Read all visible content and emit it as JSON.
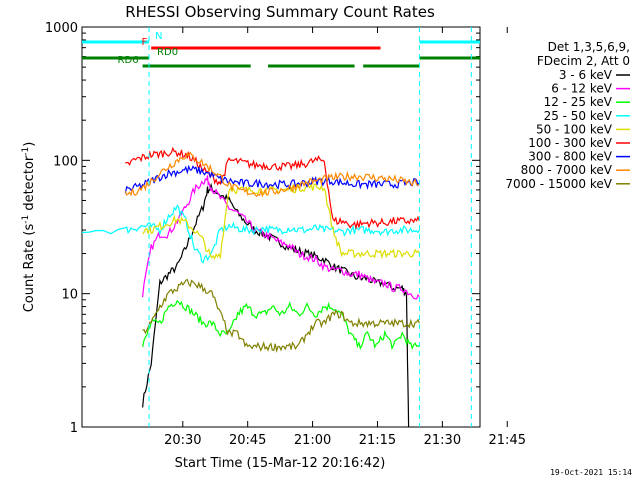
{
  "chart_data": {
    "type": "line",
    "title": "RHESSI Observing Summary Count Rates",
    "xlabel": "Start Time (15-Mar-12 20:16:42)",
    "ylabel_main": "Count Rate (s",
    "ylabel_sup1": "-1",
    "ylabel_mid": " detector",
    "ylabel_sup2": "-1",
    "ylabel_end": ")",
    "y_scale": "log",
    "ylim": [
      1,
      1000
    ],
    "xlim_minutes": [
      -10,
      82
    ],
    "x_tick_labels": [
      "20:30",
      "20:45",
      "21:00",
      "21:15",
      "21:30",
      "21:45"
    ],
    "x_tick_values": [
      13.3,
      28.3,
      43.3,
      58.3,
      73.3,
      88.3
    ],
    "y_tick_labels": [
      "1",
      "10",
      "100",
      "1000"
    ],
    "y_tick_values": [
      1,
      10,
      100,
      1000
    ],
    "legend": {
      "header1": "Det 1,3,5,6,9,",
      "header2": "FDecim 2, Att 0",
      "position": "right"
    },
    "series": [
      {
        "name": "3 - 6 keV",
        "color": "#000000",
        "values": [
          [
            4,
            1.5
          ],
          [
            6,
            3
          ],
          [
            8,
            12
          ],
          [
            10,
            14
          ],
          [
            12,
            16
          ],
          [
            14,
            22
          ],
          [
            16,
            32
          ],
          [
            18,
            45
          ],
          [
            19,
            60
          ],
          [
            20,
            62
          ],
          [
            22,
            55
          ],
          [
            24,
            50
          ],
          [
            26,
            40
          ],
          [
            28,
            34
          ],
          [
            30,
            30
          ],
          [
            32,
            28
          ],
          [
            34,
            26
          ],
          [
            36,
            24
          ],
          [
            38,
            22
          ],
          [
            40,
            21
          ],
          [
            42,
            20
          ],
          [
            44,
            19
          ],
          [
            46,
            18
          ],
          [
            48,
            16
          ],
          [
            50,
            15
          ],
          [
            52,
            14
          ],
          [
            54,
            13
          ],
          [
            56,
            13
          ],
          [
            58,
            12
          ],
          [
            60,
            12
          ],
          [
            62,
            11
          ],
          [
            64,
            11
          ],
          [
            65,
            10
          ],
          [
            65.5,
            1
          ]
        ]
      },
      {
        "name": "6 - 12 keV",
        "color": "#ff00ff",
        "values": [
          [
            4,
            10
          ],
          [
            6,
            22
          ],
          [
            8,
            28
          ],
          [
            10,
            28
          ],
          [
            12,
            35
          ],
          [
            14,
            45
          ],
          [
            16,
            60
          ],
          [
            18,
            70
          ],
          [
            19,
            72
          ],
          [
            20,
            62
          ],
          [
            22,
            52
          ],
          [
            24,
            44
          ],
          [
            26,
            40
          ],
          [
            28,
            35
          ],
          [
            30,
            30
          ],
          [
            32,
            28
          ],
          [
            34,
            26
          ],
          [
            36,
            24
          ],
          [
            38,
            23
          ],
          [
            40,
            20
          ],
          [
            42,
            19
          ],
          [
            44,
            18
          ],
          [
            46,
            16
          ],
          [
            48,
            15
          ],
          [
            50,
            15
          ],
          [
            52,
            14
          ],
          [
            54,
            14
          ],
          [
            56,
            13
          ],
          [
            58,
            12
          ],
          [
            60,
            12
          ],
          [
            62,
            11
          ],
          [
            64,
            11
          ],
          [
            66,
            10
          ],
          [
            68,
            9.5
          ]
        ]
      },
      {
        "name": "12 - 25 keV",
        "color": "#00ff00",
        "values": [
          [
            4,
            4
          ],
          [
            6,
            6
          ],
          [
            8,
            6
          ],
          [
            10,
            8
          ],
          [
            12,
            9
          ],
          [
            14,
            8
          ],
          [
            16,
            7
          ],
          [
            18,
            6
          ],
          [
            20,
            6
          ],
          [
            22,
            5
          ],
          [
            24,
            5
          ],
          [
            26,
            7
          ],
          [
            28,
            8
          ],
          [
            30,
            7
          ],
          [
            32,
            7
          ],
          [
            34,
            8
          ],
          [
            36,
            7
          ],
          [
            38,
            8
          ],
          [
            40,
            7
          ],
          [
            42,
            8
          ],
          [
            44,
            7
          ],
          [
            46,
            8
          ],
          [
            48,
            8
          ],
          [
            50,
            7
          ],
          [
            52,
            5
          ],
          [
            54,
            4
          ],
          [
            56,
            5
          ],
          [
            58,
            4
          ],
          [
            60,
            5
          ],
          [
            62,
            4
          ],
          [
            64,
            5
          ],
          [
            66,
            4
          ],
          [
            68,
            4
          ]
        ]
      },
      {
        "name": "25 - 50 keV",
        "color": "#00ffff",
        "values": [
          [
            -10,
            30
          ],
          [
            0,
            30
          ],
          [
            2,
            31
          ],
          [
            4,
            32
          ],
          [
            6,
            32
          ],
          [
            8,
            30
          ],
          [
            10,
            38
          ],
          [
            12,
            45
          ],
          [
            14,
            35
          ],
          [
            16,
            22
          ],
          [
            18,
            18
          ],
          [
            20,
            20
          ],
          [
            22,
            30
          ],
          [
            24,
            32
          ],
          [
            26,
            31
          ],
          [
            28,
            30
          ],
          [
            30,
            30
          ],
          [
            32,
            31
          ],
          [
            34,
            30
          ],
          [
            36,
            30
          ],
          [
            38,
            31
          ],
          [
            40,
            30
          ],
          [
            42,
            30
          ],
          [
            44,
            31
          ],
          [
            46,
            30
          ],
          [
            48,
            30
          ],
          [
            50,
            29
          ],
          [
            52,
            30
          ],
          [
            54,
            30
          ],
          [
            56,
            30
          ],
          [
            58,
            30
          ],
          [
            60,
            29
          ],
          [
            62,
            30
          ],
          [
            64,
            30
          ],
          [
            66,
            30
          ],
          [
            68,
            30
          ]
        ]
      },
      {
        "name": "50 - 100 keV",
        "color": "#dddd00",
        "values": [
          [
            4,
            30
          ],
          [
            6,
            30
          ],
          [
            8,
            32
          ],
          [
            10,
            34
          ],
          [
            12,
            36
          ],
          [
            14,
            34
          ],
          [
            16,
            30
          ],
          [
            18,
            25
          ],
          [
            20,
            18
          ],
          [
            22,
            20
          ],
          [
            24,
            62
          ],
          [
            26,
            60
          ],
          [
            28,
            60
          ],
          [
            30,
            60
          ],
          [
            32,
            60
          ],
          [
            34,
            60
          ],
          [
            36,
            60
          ],
          [
            38,
            60
          ],
          [
            40,
            62
          ],
          [
            42,
            63
          ],
          [
            44,
            63
          ],
          [
            46,
            63
          ],
          [
            48,
            30
          ],
          [
            50,
            20
          ],
          [
            52,
            20
          ],
          [
            54,
            20
          ],
          [
            56,
            20
          ],
          [
            58,
            20
          ],
          [
            60,
            20
          ],
          [
            62,
            20
          ],
          [
            64,
            20
          ],
          [
            66,
            20
          ],
          [
            68,
            20
          ]
        ]
      },
      {
        "name": "100 - 300 keV",
        "color": "#ff0000",
        "values": [
          [
            0,
            90
          ],
          [
            2,
            100
          ],
          [
            4,
            105
          ],
          [
            6,
            110
          ],
          [
            8,
            112
          ],
          [
            10,
            115
          ],
          [
            12,
            115
          ],
          [
            14,
            110
          ],
          [
            16,
            100
          ],
          [
            18,
            85
          ],
          [
            20,
            75
          ],
          [
            22,
            68
          ],
          [
            24,
            100
          ],
          [
            26,
            98
          ],
          [
            28,
            95
          ],
          [
            30,
            92
          ],
          [
            32,
            92
          ],
          [
            34,
            90
          ],
          [
            36,
            90
          ],
          [
            38,
            90
          ],
          [
            40,
            92
          ],
          [
            42,
            95
          ],
          [
            44,
            100
          ],
          [
            46,
            100
          ],
          [
            48,
            35
          ],
          [
            50,
            35
          ],
          [
            52,
            33
          ],
          [
            54,
            33
          ],
          [
            56,
            34
          ],
          [
            58,
            34
          ],
          [
            60,
            34
          ],
          [
            62,
            35
          ],
          [
            64,
            35
          ],
          [
            66,
            35
          ],
          [
            68,
            35
          ]
        ]
      },
      {
        "name": "300 - 800 keV",
        "color": "#0000ff",
        "values": [
          [
            0,
            60
          ],
          [
            2,
            62
          ],
          [
            4,
            65
          ],
          [
            6,
            70
          ],
          [
            8,
            75
          ],
          [
            10,
            80
          ],
          [
            12,
            82
          ],
          [
            14,
            85
          ],
          [
            16,
            85
          ],
          [
            18,
            82
          ],
          [
            20,
            78
          ],
          [
            22,
            72
          ],
          [
            24,
            70
          ],
          [
            26,
            68
          ],
          [
            28,
            67
          ],
          [
            30,
            67
          ],
          [
            32,
            67
          ],
          [
            34,
            66
          ],
          [
            36,
            66
          ],
          [
            38,
            66
          ],
          [
            40,
            67
          ],
          [
            42,
            68
          ],
          [
            44,
            70
          ],
          [
            46,
            70
          ],
          [
            48,
            70
          ],
          [
            50,
            68
          ],
          [
            52,
            67
          ],
          [
            54,
            66
          ],
          [
            56,
            66
          ],
          [
            58,
            66
          ],
          [
            60,
            66
          ],
          [
            62,
            66
          ],
          [
            64,
            67
          ],
          [
            66,
            68
          ],
          [
            68,
            68
          ]
        ]
      },
      {
        "name": "800 - 7000 keV",
        "color": "#ff8800",
        "values": [
          [
            0,
            55
          ],
          [
            2,
            58
          ],
          [
            4,
            62
          ],
          [
            6,
            70
          ],
          [
            8,
            80
          ],
          [
            10,
            90
          ],
          [
            12,
            100
          ],
          [
            14,
            110
          ],
          [
            16,
            105
          ],
          [
            18,
            95
          ],
          [
            20,
            85
          ],
          [
            22,
            75
          ],
          [
            24,
            65
          ],
          [
            26,
            60
          ],
          [
            28,
            58
          ],
          [
            30,
            57
          ],
          [
            32,
            57
          ],
          [
            34,
            58
          ],
          [
            36,
            60
          ],
          [
            38,
            62
          ],
          [
            40,
            65
          ],
          [
            42,
            68
          ],
          [
            44,
            70
          ],
          [
            46,
            72
          ],
          [
            48,
            74
          ],
          [
            50,
            75
          ],
          [
            52,
            76
          ],
          [
            54,
            76
          ],
          [
            56,
            75
          ],
          [
            58,
            74
          ],
          [
            60,
            73
          ],
          [
            62,
            72
          ],
          [
            64,
            70
          ],
          [
            66,
            68
          ],
          [
            68,
            66
          ]
        ]
      },
      {
        "name": "7000 - 15000 keV",
        "color": "#808000",
        "values": [
          [
            4,
            5
          ],
          [
            6,
            6
          ],
          [
            8,
            8
          ],
          [
            10,
            10
          ],
          [
            12,
            11
          ],
          [
            14,
            12
          ],
          [
            16,
            12
          ],
          [
            18,
            11
          ],
          [
            20,
            10
          ],
          [
            22,
            7
          ],
          [
            24,
            5
          ],
          [
            26,
            5
          ],
          [
            28,
            4
          ],
          [
            30,
            4
          ],
          [
            32,
            4
          ],
          [
            34,
            4
          ],
          [
            36,
            4
          ],
          [
            38,
            4
          ],
          [
            40,
            4
          ],
          [
            42,
            5
          ],
          [
            44,
            6
          ],
          [
            46,
            6
          ],
          [
            48,
            7
          ],
          [
            50,
            7
          ],
          [
            52,
            6
          ],
          [
            54,
            6
          ],
          [
            56,
            6
          ],
          [
            58,
            6
          ],
          [
            60,
            6
          ],
          [
            62,
            6
          ],
          [
            64,
            6
          ],
          [
            66,
            6
          ],
          [
            68,
            6
          ]
        ]
      }
    ],
    "flag_bars": [
      {
        "label": "N",
        "color": "#00ffff",
        "segments": [
          [
            -10,
            5.5
          ],
          [
            68,
            82
          ]
        ]
      },
      {
        "label": "F",
        "color": "#ff0000",
        "segments": [
          [
            6,
            59
          ]
        ]
      },
      {
        "label": "RD0",
        "color": "#008000",
        "segments": [
          [
            -10,
            5.5
          ],
          [
            68,
            82
          ]
        ]
      },
      {
        "label": "RD6",
        "color": "#008000",
        "segments": [
          [
            4,
            29
          ],
          [
            33,
            53
          ],
          [
            55,
            68
          ]
        ]
      }
    ],
    "timestamp": "19-Oct-2021 15:14"
  }
}
